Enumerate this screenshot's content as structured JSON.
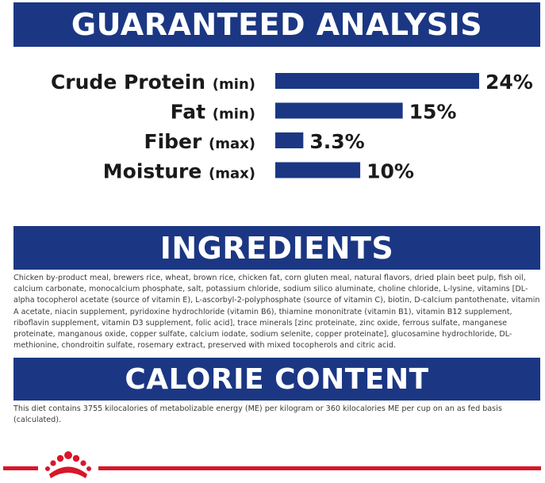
{
  "headings": {
    "analysis": "GUARANTEED ANALYSIS",
    "ingredients": "INGREDIENTS",
    "calorie": "CALORIE CONTENT"
  },
  "chart_data": {
    "type": "bar",
    "orientation": "horizontal",
    "categories": [
      "Crude Protein",
      "Fat",
      "Fiber",
      "Moisture"
    ],
    "qualifiers": [
      "(min)",
      "(min)",
      "(max)",
      "(max)"
    ],
    "values": [
      24,
      15,
      3.3,
      10
    ],
    "value_labels": [
      "24%",
      "15%",
      "3.3%",
      "10%"
    ],
    "xlim": [
      0,
      24
    ],
    "grid": false,
    "legend": "none",
    "bar_color": "#1b3784"
  },
  "ingredients_text": "Chicken by-product meal, brewers rice, wheat, brown rice, chicken fat, corn gluten meal, natural flavors, dried plain beet pulp, fish oil, calcium carbonate, monocalcium phosphate, salt, potassium chloride, sodium silico aluminate, choline chloride, L-lysine, vitamins [DL-alpha tocopherol acetate (source of vitamin E), L-ascorbyl-2-polyphosphate (source of vitamin C), biotin, D-calcium pantothenate, vitamin A acetate, niacin supplement, pyridoxine hydrochloride (vitamin B6), thiamine mononitrate (vitamin B1), vitamin B12 supplement, riboflavin supplement, vitamin D3 supplement, folic acid], trace minerals [zinc proteinate, zinc oxide, ferrous sulfate, manganese proteinate, manganous oxide, copper sulfate, calcium iodate, sodium selenite, copper proteinate], glucosamine hydrochloride, DL-methionine, chondroitin sulfate, rosemary extract, preserved with mixed tocopherols and citric acid.",
  "calorie_text": "This diet contains 3755 kilocalories of metabolizable energy (ME) per kilogram or 360 kilocalories ME per cup on an as fed basis (calculated).",
  "colors": {
    "banner": "#1b3784",
    "accent_red": "#d8162a"
  },
  "icons": {
    "logo": "royal-canin-crown-icon"
  }
}
